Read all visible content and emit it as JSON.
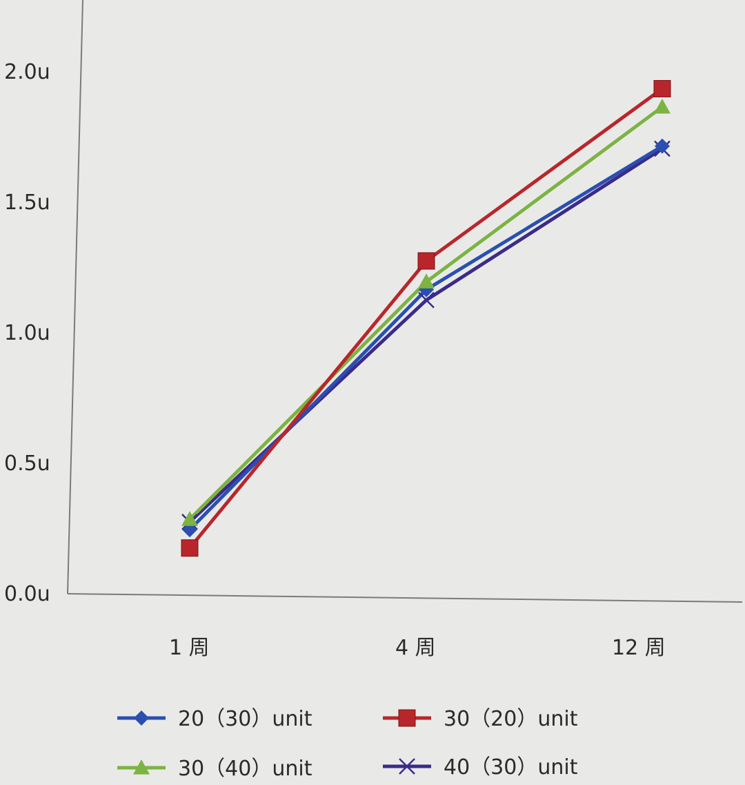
{
  "chart_data": {
    "type": "line",
    "title": "",
    "xlabel": "",
    "ylabel": "",
    "categories": [
      "1 周",
      "4 周",
      "12 周"
    ],
    "y_ticks": [
      {
        "value": 0.0,
        "label": "0.0u"
      },
      {
        "value": 0.5,
        "label": "0.5u"
      },
      {
        "value": 1.0,
        "label": "1.0u"
      },
      {
        "value": 1.5,
        "label": "1.5u"
      },
      {
        "value": 2.0,
        "label": "2.0u"
      }
    ],
    "ylim": [
      0,
      2.2
    ],
    "grid": false,
    "legend_position": "bottom",
    "series": [
      {
        "name": "20（30）unit",
        "values": [
          0.24,
          1.16,
          1.71
        ],
        "color": "#2a4fb0",
        "marker": "diamond"
      },
      {
        "name": "30（20）unit",
        "values": [
          0.17,
          1.27,
          1.93
        ],
        "color": "#b8262c",
        "marker": "square"
      },
      {
        "name": "30（40）unit",
        "values": [
          0.28,
          1.19,
          1.86
        ],
        "color": "#7cb342",
        "marker": "triangle"
      },
      {
        "name": "40（30）unit",
        "values": [
          0.27,
          1.12,
          1.7
        ],
        "color": "#3c2a8a",
        "marker": "x"
      }
    ]
  }
}
